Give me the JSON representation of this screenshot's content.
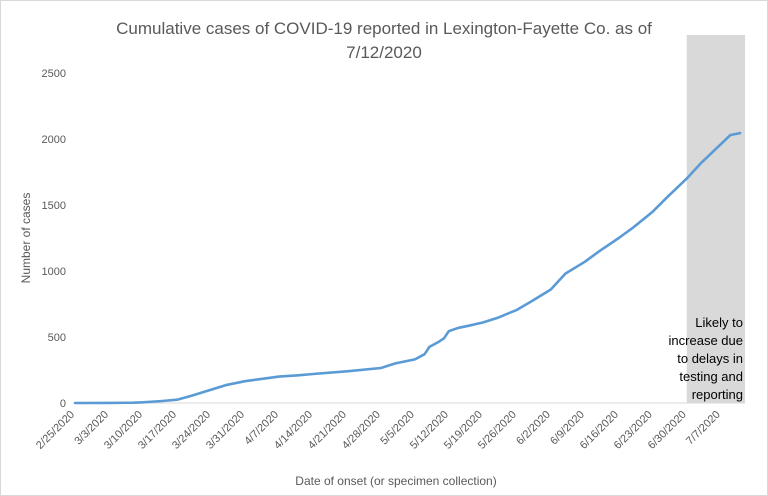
{
  "chart_data": {
    "type": "line",
    "title_lines": [
      "Cumulative cases of COVID-19 reported in Lexington-Fayette Co.  as of",
      "7/12/2020"
    ],
    "xlabel": "Date of onset (or specimen collection)",
    "ylabel": "Number of cases",
    "ylim": [
      0,
      2500
    ],
    "yticks": [
      "0",
      "500",
      "1000",
      "1500",
      "2000",
      "2500"
    ],
    "x_start": "2/25/2020",
    "x_end": "7/12/2020",
    "xticks": [
      "2/25/2020",
      "3/3/2020",
      "3/10/2020",
      "3/17/2020",
      "3/24/2020",
      "3/31/2020",
      "4/7/2020",
      "4/14/2020",
      "4/21/2020",
      "4/28/2020",
      "5/5/2020",
      "5/12/2020",
      "5/19/2020",
      "5/26/2020",
      "6/2/2020",
      "6/9/2020",
      "6/16/2020",
      "6/23/2020",
      "6/30/2020",
      "7/7/2020"
    ],
    "grid": false,
    "series": [
      {
        "color": "#5b9bd5",
        "points": [
          [
            "2/25/2020",
            0
          ],
          [
            "3/3/2020",
            1
          ],
          [
            "3/8/2020",
            2
          ],
          [
            "3/10/2020",
            5
          ],
          [
            "3/14/2020",
            15
          ],
          [
            "3/17/2020",
            25
          ],
          [
            "3/20/2020",
            55
          ],
          [
            "3/24/2020",
            100
          ],
          [
            "3/27/2020",
            135
          ],
          [
            "3/31/2020",
            165
          ],
          [
            "4/4/2020",
            185
          ],
          [
            "4/7/2020",
            200
          ],
          [
            "4/11/2020",
            210
          ],
          [
            "4/14/2020",
            220
          ],
          [
            "4/21/2020",
            240
          ],
          [
            "4/28/2020",
            265
          ],
          [
            "5/1/2020",
            300
          ],
          [
            "5/5/2020",
            330
          ],
          [
            "5/7/2020",
            370
          ],
          [
            "5/8/2020",
            425
          ],
          [
            "5/10/2020",
            465
          ],
          [
            "5/11/2020",
            490
          ],
          [
            "5/12/2020",
            545
          ],
          [
            "5/14/2020",
            570
          ],
          [
            "5/16/2020",
            585
          ],
          [
            "5/19/2020",
            610
          ],
          [
            "5/22/2020",
            645
          ],
          [
            "5/26/2020",
            705
          ],
          [
            "5/29/2020",
            770
          ],
          [
            "6/2/2020",
            860
          ],
          [
            "6/5/2020",
            980
          ],
          [
            "6/9/2020",
            1070
          ],
          [
            "6/12/2020",
            1150
          ],
          [
            "6/16/2020",
            1250
          ],
          [
            "6/19/2020",
            1330
          ],
          [
            "6/23/2020",
            1450
          ],
          [
            "6/26/2020",
            1560
          ],
          [
            "6/30/2020",
            1700
          ],
          [
            "7/3/2020",
            1820
          ],
          [
            "7/7/2020",
            1960
          ],
          [
            "7/9/2020",
            2030
          ],
          [
            "7/11/2020",
            2045
          ]
        ]
      }
    ],
    "shaded_region": {
      "x_from": "6/30/2020",
      "x_to": "7/12/2020",
      "color": "#d9d9d9",
      "label_lines": [
        "Likely to",
        "increase due",
        "to delays in",
        "testing and",
        "reporting"
      ]
    }
  }
}
